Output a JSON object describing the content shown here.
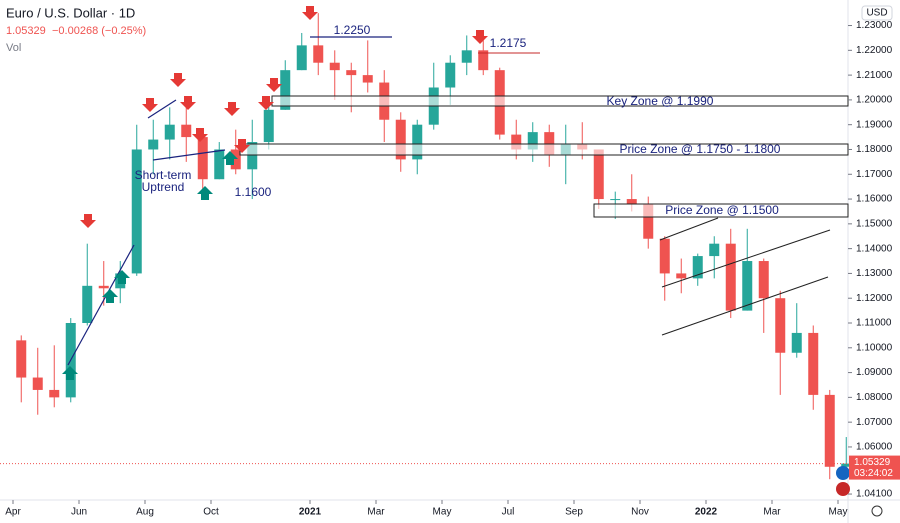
{
  "chart_data": {
    "type": "candlestick",
    "title": "Euro / U.S. Dollar · 1D",
    "last_price": "1.05329",
    "change": "−0.00268 (−0.25%)",
    "volume_label": "Vol",
    "currency": "USD",
    "countdown": "03:24:02",
    "up_color": "#26a69a",
    "down_color": "#ef5350",
    "categories": [
      null,
      null,
      null,
      null,
      null,
      null,
      null,
      null,
      null,
      null,
      null,
      null,
      null,
      null,
      null,
      null,
      null,
      null,
      null,
      null,
      null,
      null,
      null,
      null,
      null,
      null,
      null,
      null,
      null,
      null,
      null,
      null,
      null,
      null,
      null,
      null,
      null,
      null,
      null,
      null,
      null,
      null,
      null,
      null,
      null,
      null,
      null,
      null,
      null,
      null,
      null
    ],
    "open": [
      1.103,
      1.088,
      1.083,
      1.08,
      1.11,
      1.125,
      1.124,
      1.13,
      1.18,
      1.184,
      1.19,
      1.185,
      1.168,
      1.18,
      1.172,
      1.183,
      1.196,
      1.212,
      1.222,
      1.215,
      1.212,
      1.21,
      1.207,
      1.192,
      1.176,
      1.19,
      1.205,
      1.215,
      1.22,
      1.212,
      1.186,
      1.18,
      1.187,
      1.178,
      1.182,
      1.18,
      1.16,
      1.16,
      1.158,
      1.144,
      1.13,
      1.128,
      1.137,
      1.142,
      1.115,
      1.135,
      1.12,
      1.098,
      1.106,
      1.081,
      1.052
    ],
    "high": [
      1.105,
      1.1,
      1.101,
      1.112,
      1.142,
      1.135,
      1.135,
      1.19,
      1.192,
      1.197,
      1.201,
      1.187,
      1.183,
      1.188,
      1.192,
      1.2,
      1.216,
      1.227,
      1.235,
      1.22,
      1.215,
      1.224,
      1.212,
      1.195,
      1.192,
      1.215,
      1.218,
      1.226,
      1.225,
      1.213,
      1.192,
      1.191,
      1.19,
      1.19,
      1.191,
      1.18,
      1.163,
      1.17,
      1.161,
      1.145,
      1.136,
      1.138,
      1.145,
      1.148,
      1.148,
      1.136,
      1.123,
      1.118,
      1.109,
      1.083,
      1.064
    ],
    "low": [
      1.078,
      1.073,
      1.076,
      1.078,
      1.109,
      1.117,
      1.118,
      1.129,
      1.17,
      1.176,
      1.175,
      1.161,
      1.168,
      1.17,
      1.16,
      1.18,
      1.196,
      1.212,
      1.21,
      1.2,
      1.195,
      1.203,
      1.183,
      1.171,
      1.17,
      1.188,
      1.198,
      1.21,
      1.21,
      1.184,
      1.176,
      1.175,
      1.173,
      1.166,
      1.176,
      1.156,
      1.152,
      1.155,
      1.14,
      1.119,
      1.122,
      1.125,
      1.128,
      1.112,
      1.115,
      1.106,
      1.081,
      1.096,
      1.075,
      1.047,
      1.047
    ],
    "close": [
      1.088,
      1.083,
      1.08,
      1.11,
      1.125,
      1.124,
      1.13,
      1.18,
      1.184,
      1.19,
      1.185,
      1.168,
      1.18,
      1.172,
      1.183,
      1.196,
      1.212,
      1.222,
      1.215,
      1.212,
      1.21,
      1.207,
      1.192,
      1.176,
      1.19,
      1.205,
      1.215,
      1.22,
      1.212,
      1.186,
      1.18,
      1.187,
      1.178,
      1.182,
      1.18,
      1.16,
      1.16,
      1.158,
      1.144,
      1.13,
      1.128,
      1.137,
      1.142,
      1.115,
      1.135,
      1.12,
      1.098,
      1.106,
      1.081,
      1.052,
      1.05329
    ],
    "ylim": [
      1.0386,
      1.2403
    ],
    "yticks": [
      {
        "value": 1.23,
        "label": "1.23000"
      },
      {
        "value": 1.22,
        "label": "1.22000"
      },
      {
        "value": 1.21,
        "label": "1.21000"
      },
      {
        "value": 1.2,
        "label": "1.20000"
      },
      {
        "value": 1.19,
        "label": "1.19000"
      },
      {
        "value": 1.18,
        "label": "1.18000"
      },
      {
        "value": 1.17,
        "label": "1.17000"
      },
      {
        "value": 1.16,
        "label": "1.16000"
      },
      {
        "value": 1.15,
        "label": "1.15000"
      },
      {
        "value": 1.14,
        "label": "1.14000"
      },
      {
        "value": 1.13,
        "label": "1.13000"
      },
      {
        "value": 1.12,
        "label": "1.12000"
      },
      {
        "value": 1.11,
        "label": "1.11000"
      },
      {
        "value": 1.1,
        "label": "1.10000"
      },
      {
        "value": 1.09,
        "label": "1.09000"
      },
      {
        "value": 1.08,
        "label": "1.08000"
      },
      {
        "value": 1.07,
        "label": "1.07000"
      },
      {
        "value": 1.06,
        "label": "1.06000"
      },
      {
        "value": 1.041,
        "label": "1.04100"
      }
    ],
    "xticks": [
      {
        "value": 0,
        "label": "Apr"
      },
      {
        "value": 4,
        "label": "Jun"
      },
      {
        "value": 8,
        "label": "Aug"
      },
      {
        "value": 12,
        "label": "Oct"
      },
      {
        "value": 18,
        "label": "2021"
      },
      {
        "value": 22,
        "label": "Mar"
      },
      {
        "value": 26,
        "label": "May"
      },
      {
        "value": 30,
        "label": "Jul"
      },
      {
        "value": 34,
        "label": "Sep"
      },
      {
        "value": 38,
        "label": "Nov"
      },
      {
        "value": 42,
        "label": "2022"
      },
      {
        "value": 46,
        "label": "Mar"
      },
      {
        "value": 50,
        "label": "May"
      }
    ],
    "annotations": {
      "r1": "1.2250",
      "r2": "1.2175",
      "key_zone": "Key Zone @ 1.1990",
      "zone1": "Price Zone @ 1.1750 - 1.1800",
      "zone2": "Price Zone @ 1.1500",
      "s1": "1.1600",
      "trend1": "Short-term",
      "trend2": "Uptrend"
    }
  }
}
